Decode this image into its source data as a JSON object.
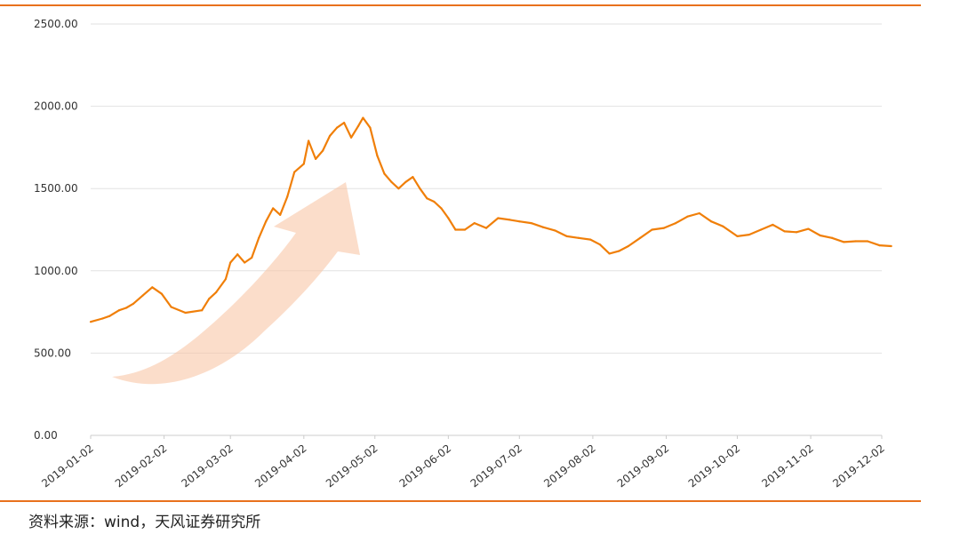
{
  "chart_data": {
    "type": "line",
    "title": "",
    "xlabel": "",
    "ylabel": "",
    "ylim": [
      0,
      2500
    ],
    "grid": true,
    "yticks": [
      "0.00",
      "500.00",
      "1000.00",
      "1500.00",
      "2000.00",
      "2500.00"
    ],
    "xticks": [
      "2019-01-02",
      "2019-02-02",
      "2019-03-02",
      "2019-04-02",
      "2019-05-02",
      "2019-06-02",
      "2019-07-02",
      "2019-08-02",
      "2019-09-02",
      "2019-10-02",
      "2019-11-02",
      "2019-12-02"
    ],
    "series": [
      {
        "color": "#f07f09",
        "x": [
          "2019-01-02",
          "2019-01-07",
          "2019-01-10",
          "2019-01-14",
          "2019-01-17",
          "2019-01-20",
          "2019-01-24",
          "2019-01-28",
          "2019-02-01",
          "2019-02-05",
          "2019-02-11",
          "2019-02-18",
          "2019-02-21",
          "2019-02-24",
          "2019-02-28",
          "2019-03-02",
          "2019-03-05",
          "2019-03-08",
          "2019-03-11",
          "2019-03-14",
          "2019-03-17",
          "2019-03-20",
          "2019-03-23",
          "2019-03-26",
          "2019-03-29",
          "2019-04-02",
          "2019-04-04",
          "2019-04-07",
          "2019-04-10",
          "2019-04-13",
          "2019-04-16",
          "2019-04-19",
          "2019-04-22",
          "2019-04-25",
          "2019-04-27",
          "2019-04-30",
          "2019-05-03",
          "2019-05-06",
          "2019-05-09",
          "2019-05-12",
          "2019-05-15",
          "2019-05-18",
          "2019-05-21",
          "2019-05-24",
          "2019-05-27",
          "2019-05-30",
          "2019-06-02",
          "2019-06-05",
          "2019-06-09",
          "2019-06-13",
          "2019-06-18",
          "2019-06-23",
          "2019-06-28",
          "2019-07-02",
          "2019-07-07",
          "2019-07-12",
          "2019-07-17",
          "2019-07-22",
          "2019-07-27",
          "2019-08-01",
          "2019-08-05",
          "2019-08-09",
          "2019-08-13",
          "2019-08-17",
          "2019-08-22",
          "2019-08-27",
          "2019-09-01",
          "2019-09-06",
          "2019-09-11",
          "2019-09-16",
          "2019-09-21",
          "2019-09-26",
          "2019-10-02",
          "2019-10-07",
          "2019-10-12",
          "2019-10-17",
          "2019-10-22",
          "2019-10-27",
          "2019-11-01",
          "2019-11-06",
          "2019-11-11",
          "2019-11-16",
          "2019-11-21",
          "2019-11-26",
          "2019-12-01",
          "2019-12-06"
        ],
        "values": [
          690,
          710,
          725,
          760,
          775,
          800,
          850,
          900,
          860,
          780,
          745,
          760,
          830,
          870,
          950,
          1050,
          1100,
          1050,
          1080,
          1200,
          1300,
          1380,
          1340,
          1450,
          1600,
          1650,
          1790,
          1680,
          1730,
          1820,
          1870,
          1900,
          1810,
          1880,
          1930,
          1870,
          1700,
          1590,
          1540,
          1500,
          1540,
          1570,
          1500,
          1440,
          1420,
          1380,
          1320,
          1250,
          1250,
          1290,
          1260,
          1320,
          1310,
          1300,
          1290,
          1265,
          1245,
          1210,
          1200,
          1190,
          1160,
          1105,
          1120,
          1150,
          1200,
          1250,
          1260,
          1290,
          1330,
          1350,
          1300,
          1270,
          1210,
          1220,
          1250,
          1280,
          1240,
          1235,
          1255,
          1215,
          1200,
          1175,
          1180,
          1180,
          1155,
          1150
        ]
      }
    ]
  },
  "source_note": "资料来源：wind，天风证券研究所"
}
